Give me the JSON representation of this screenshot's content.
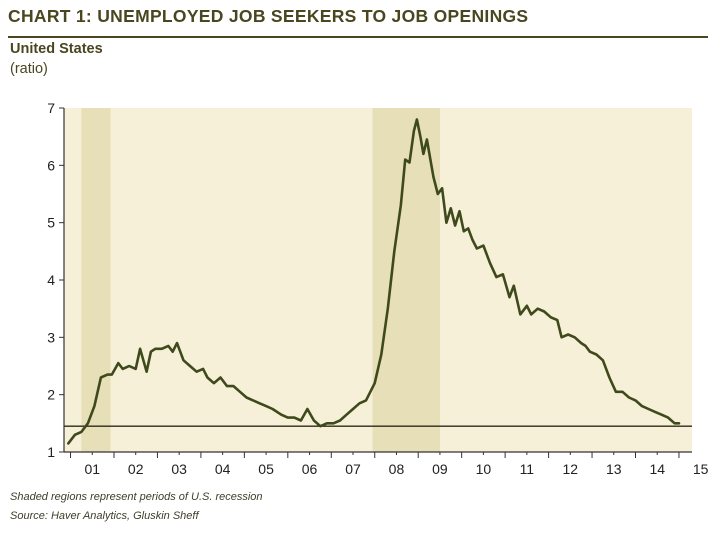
{
  "header": {
    "title": "CHART 1: UNEMPLOYED JOB SEEKERS TO JOB OPENINGS",
    "subtitle": "United States",
    "unit": "(ratio)"
  },
  "footer": {
    "note": "Shaded regions represent periods of U.S. recession",
    "source": "Source: Haver Analytics, Gluskin Sheff"
  },
  "colors": {
    "plot_background": "#f7f0d9",
    "recession_shade": "#e6dfb8",
    "line": "#3f4a1c",
    "text": "#4a4720"
  },
  "chart_data": {
    "type": "line",
    "title": "CHART 1: UNEMPLOYED JOB SEEKERS TO JOB OPENINGS",
    "ylabel": "(ratio)",
    "xlabel": "",
    "xlim": [
      2000.85,
      2015.3
    ],
    "ylim": [
      1,
      7
    ],
    "yticks": [
      "1",
      "2",
      "3",
      "4",
      "5",
      "6",
      "7"
    ],
    "xtick_labels": [
      "01",
      "02",
      "03",
      "04",
      "05",
      "06",
      "07",
      "08",
      "09",
      "10",
      "11",
      "12",
      "13",
      "14",
      "15"
    ],
    "xtick_years": [
      2001,
      2002,
      2003,
      2004,
      2005,
      2006,
      2007,
      2008,
      2009,
      2010,
      2011,
      2012,
      2013,
      2014,
      2015
    ],
    "recessions": [
      [
        2001.25,
        2001.92
      ],
      [
        2007.95,
        2009.5
      ]
    ],
    "reference_line": 1.45,
    "series": [
      {
        "x": [
          2000.95,
          2001.1,
          2001.25,
          2001.4,
          2001.55,
          2001.7,
          2001.85,
          2001.95,
          2002.1,
          2002.2,
          2002.35,
          2002.5,
          2002.6,
          2002.75,
          2002.85,
          2002.95,
          2003.1,
          2003.25,
          2003.35,
          2003.45,
          2003.6,
          2003.75,
          2003.9,
          2004.05,
          2004.15,
          2004.3,
          2004.45,
          2004.6,
          2004.75,
          2004.9,
          2005.05,
          2005.2,
          2005.35,
          2005.5,
          2005.65,
          2005.85,
          2006.0,
          2006.15,
          2006.3,
          2006.45,
          2006.6,
          2006.75,
          2006.9,
          2007.05,
          2007.2,
          2007.35,
          2007.5,
          2007.65,
          2007.8,
          2008.0,
          2008.15,
          2008.3,
          2008.45,
          2008.6,
          2008.7,
          2008.8,
          2008.9,
          2008.97,
          2009.05,
          2009.12,
          2009.2,
          2009.28,
          2009.35,
          2009.45,
          2009.55,
          2009.65,
          2009.75,
          2009.85,
          2009.95,
          2010.05,
          2010.15,
          2010.25,
          2010.35,
          2010.5,
          2010.65,
          2010.8,
          2010.95,
          2011.1,
          2011.2,
          2011.35,
          2011.5,
          2011.6,
          2011.75,
          2011.9,
          2012.05,
          2012.2,
          2012.3,
          2012.45,
          2012.6,
          2012.75,
          2012.85,
          2012.95,
          2013.1,
          2013.25,
          2013.4,
          2013.55,
          2013.7,
          2013.85,
          2014.0,
          2014.15,
          2014.3,
          2014.45,
          2014.6,
          2014.75,
          2014.9,
          2015.0
        ],
        "values": [
          1.15,
          1.3,
          1.35,
          1.5,
          1.8,
          2.3,
          2.35,
          2.35,
          2.55,
          2.45,
          2.5,
          2.45,
          2.8,
          2.4,
          2.75,
          2.8,
          2.8,
          2.85,
          2.75,
          2.9,
          2.6,
          2.5,
          2.4,
          2.45,
          2.3,
          2.2,
          2.3,
          2.15,
          2.15,
          2.05,
          1.95,
          1.9,
          1.85,
          1.8,
          1.75,
          1.65,
          1.6,
          1.6,
          1.55,
          1.75,
          1.55,
          1.45,
          1.5,
          1.5,
          1.55,
          1.65,
          1.75,
          1.85,
          1.9,
          2.2,
          2.7,
          3.5,
          4.5,
          5.3,
          6.1,
          6.05,
          6.6,
          6.8,
          6.5,
          6.2,
          6.45,
          6.1,
          5.8,
          5.5,
          5.6,
          5.0,
          5.25,
          4.95,
          5.2,
          4.85,
          4.9,
          4.7,
          4.55,
          4.6,
          4.3,
          4.05,
          4.1,
          3.7,
          3.9,
          3.4,
          3.55,
          3.4,
          3.5,
          3.45,
          3.35,
          3.3,
          3.0,
          3.05,
          3.0,
          2.9,
          2.85,
          2.75,
          2.7,
          2.6,
          2.3,
          2.05,
          2.05,
          1.95,
          1.9,
          1.8,
          1.75,
          1.7,
          1.65,
          1.6,
          1.5,
          1.5
        ]
      }
    ]
  }
}
